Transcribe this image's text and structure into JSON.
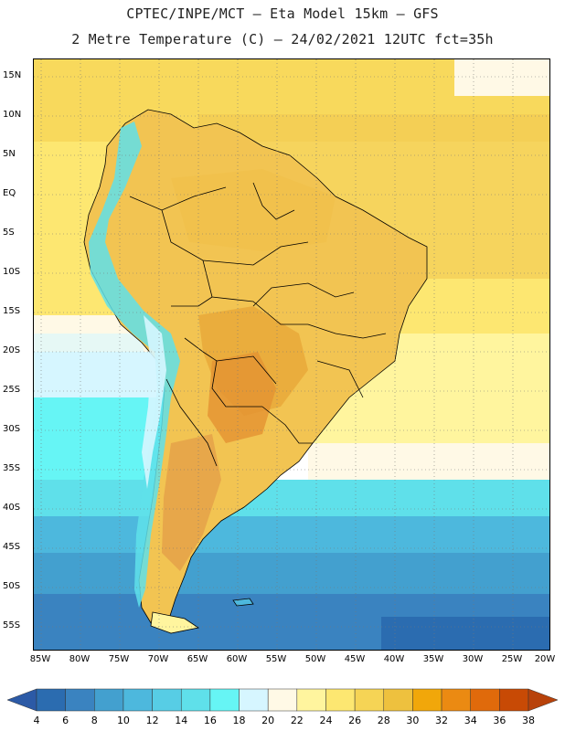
{
  "title": {
    "line1": "CPTEC/INPE/MCT –  Eta Model 15km – GFS",
    "line2": "2 Metre Temperature (C) – 24/02/2021 12UTC fct=35h"
  },
  "axes": {
    "lat_labels": [
      "15N",
      "10N",
      "5N",
      "EQ",
      "5S",
      "10S",
      "15S",
      "20S",
      "25S",
      "30S",
      "35S",
      "40S",
      "45S",
      "50S",
      "55S"
    ],
    "lon_labels": [
      "85W",
      "80W",
      "75W",
      "70W",
      "65W",
      "60W",
      "55W",
      "50W",
      "45W",
      "40W",
      "35W",
      "30W",
      "25W",
      "20W"
    ]
  },
  "colorbar": {
    "ticks": [
      "4",
      "6",
      "8",
      "10",
      "12",
      "14",
      "16",
      "18",
      "20",
      "22",
      "24",
      "26",
      "28",
      "30",
      "32",
      "34",
      "36",
      "38"
    ],
    "colors": [
      "#2b6cb0",
      "#3a83c0",
      "#43a0cf",
      "#4db8dd",
      "#57cde5",
      "#5fe0ea",
      "#66f5f5",
      "#d6f6ff",
      "#fff9e6",
      "#fff59e",
      "#fde771",
      "#f6d455",
      "#eec13e",
      "#f1a70a",
      "#eb8a12",
      "#e06a0b",
      "#c84a05"
    ],
    "low_extension_color": "#2c5aa6",
    "high_extension_color": "#b8420a"
  }
}
